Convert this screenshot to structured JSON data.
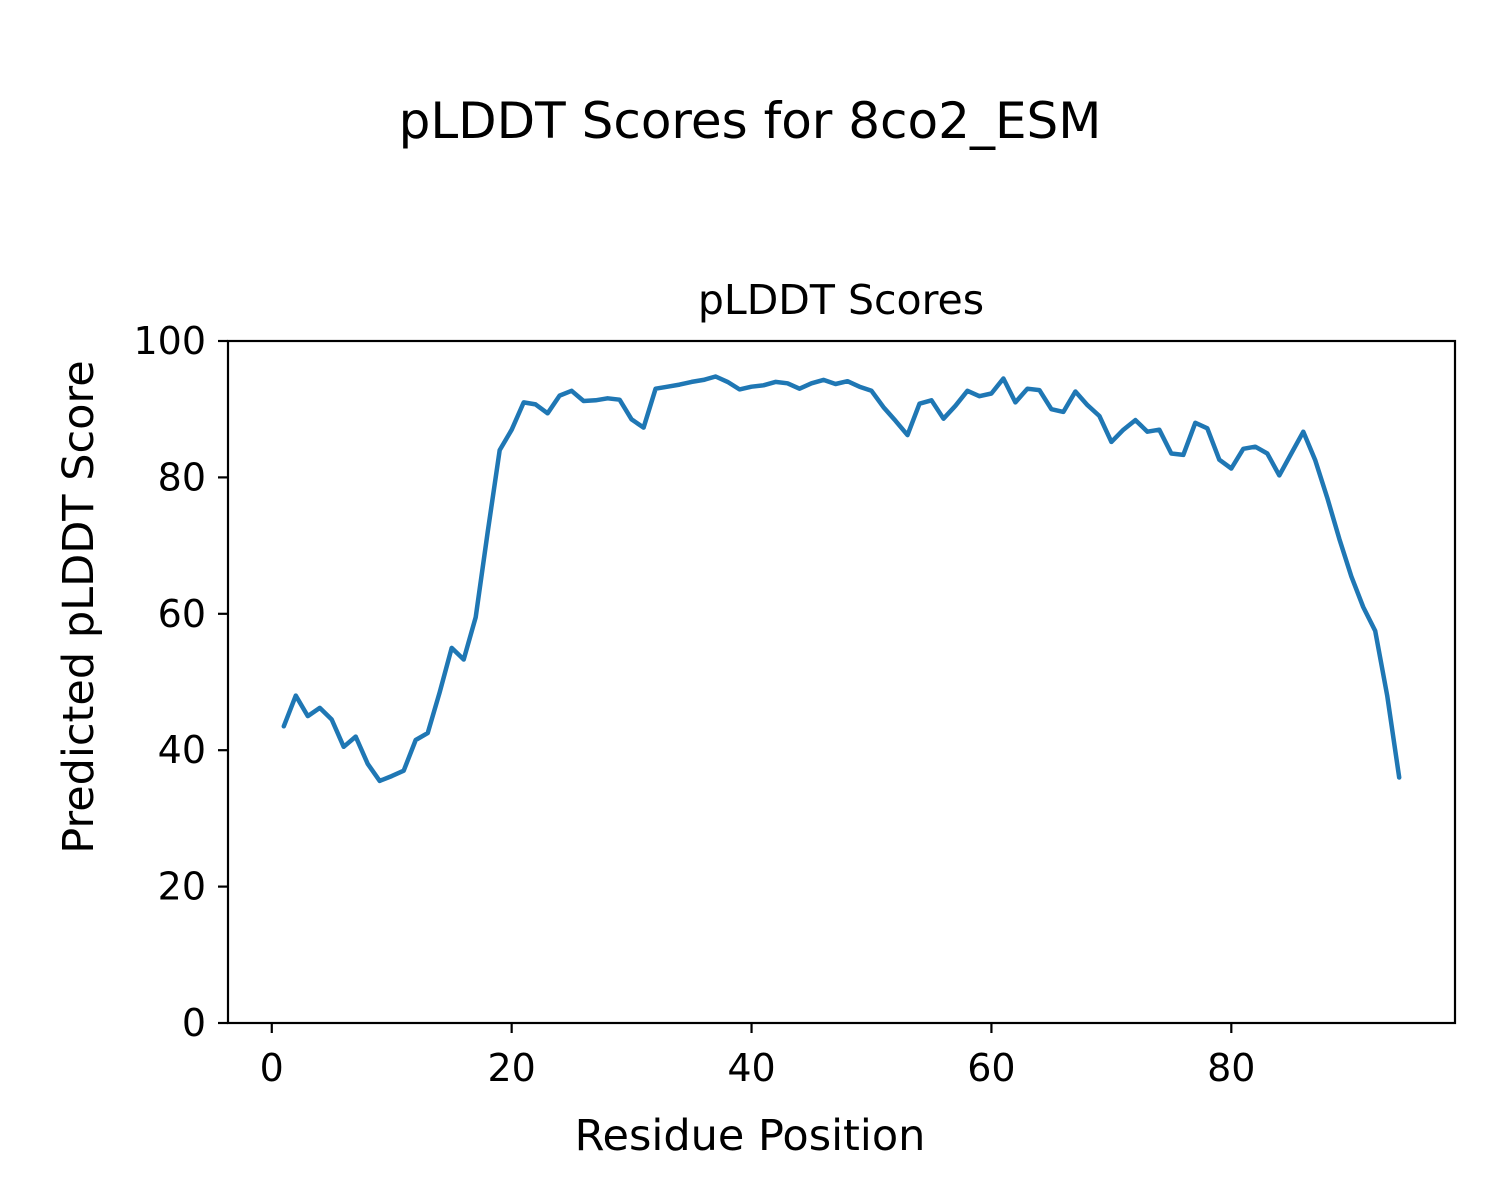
{
  "figure": {
    "suptitle": "pLDDT Scores for 8co2_ESM"
  },
  "chart_data": {
    "type": "line",
    "title": "pLDDT Scores",
    "xlabel": "Residue Position",
    "ylabel": "Predicted pLDDT Score",
    "x_start": 1,
    "x_end": 94,
    "values": [
      43.5,
      48.0,
      45.0,
      46.2,
      44.5,
      40.5,
      42.0,
      38.0,
      35.5,
      36.2,
      37.0,
      41.5,
      42.5,
      48.5,
      55.0,
      53.3,
      59.5,
      72.0,
      84.0,
      87.0,
      91.0,
      90.7,
      89.4,
      92.0,
      92.7,
      91.2,
      91.3,
      91.6,
      91.4,
      88.5,
      87.3,
      93.0,
      93.3,
      93.6,
      94.0,
      94.3,
      94.8,
      94.0,
      92.9,
      93.3,
      93.5,
      94.0,
      93.8,
      93.0,
      93.8,
      94.3,
      93.7,
      94.1,
      93.3,
      92.7,
      90.3,
      88.3,
      86.2,
      90.8,
      91.3,
      88.6,
      90.5,
      92.7,
      91.9,
      92.3,
      94.5,
      91.0,
      93.0,
      92.8,
      90.0,
      89.6,
      92.6,
      90.6,
      89.0,
      85.2,
      87.0,
      88.4,
      86.7,
      87.0,
      83.5,
      83.3,
      88.0,
      87.2,
      82.6,
      81.3,
      84.2,
      84.5,
      83.5,
      80.3,
      83.5,
      86.7,
      82.5,
      77.0,
      71.0,
      65.5,
      61.0,
      57.5,
      48.0,
      36.0
    ],
    "xticks": [
      0,
      20,
      40,
      60,
      80
    ],
    "yticks": [
      0,
      20,
      40,
      60,
      80,
      100
    ],
    "xlim": [
      -3.65,
      98.65
    ],
    "ylim": [
      0,
      100
    ],
    "grid": false,
    "legend": "none",
    "line_color": "#1f77b4",
    "axis_color": "#000000",
    "background_color": "#ffffff"
  }
}
